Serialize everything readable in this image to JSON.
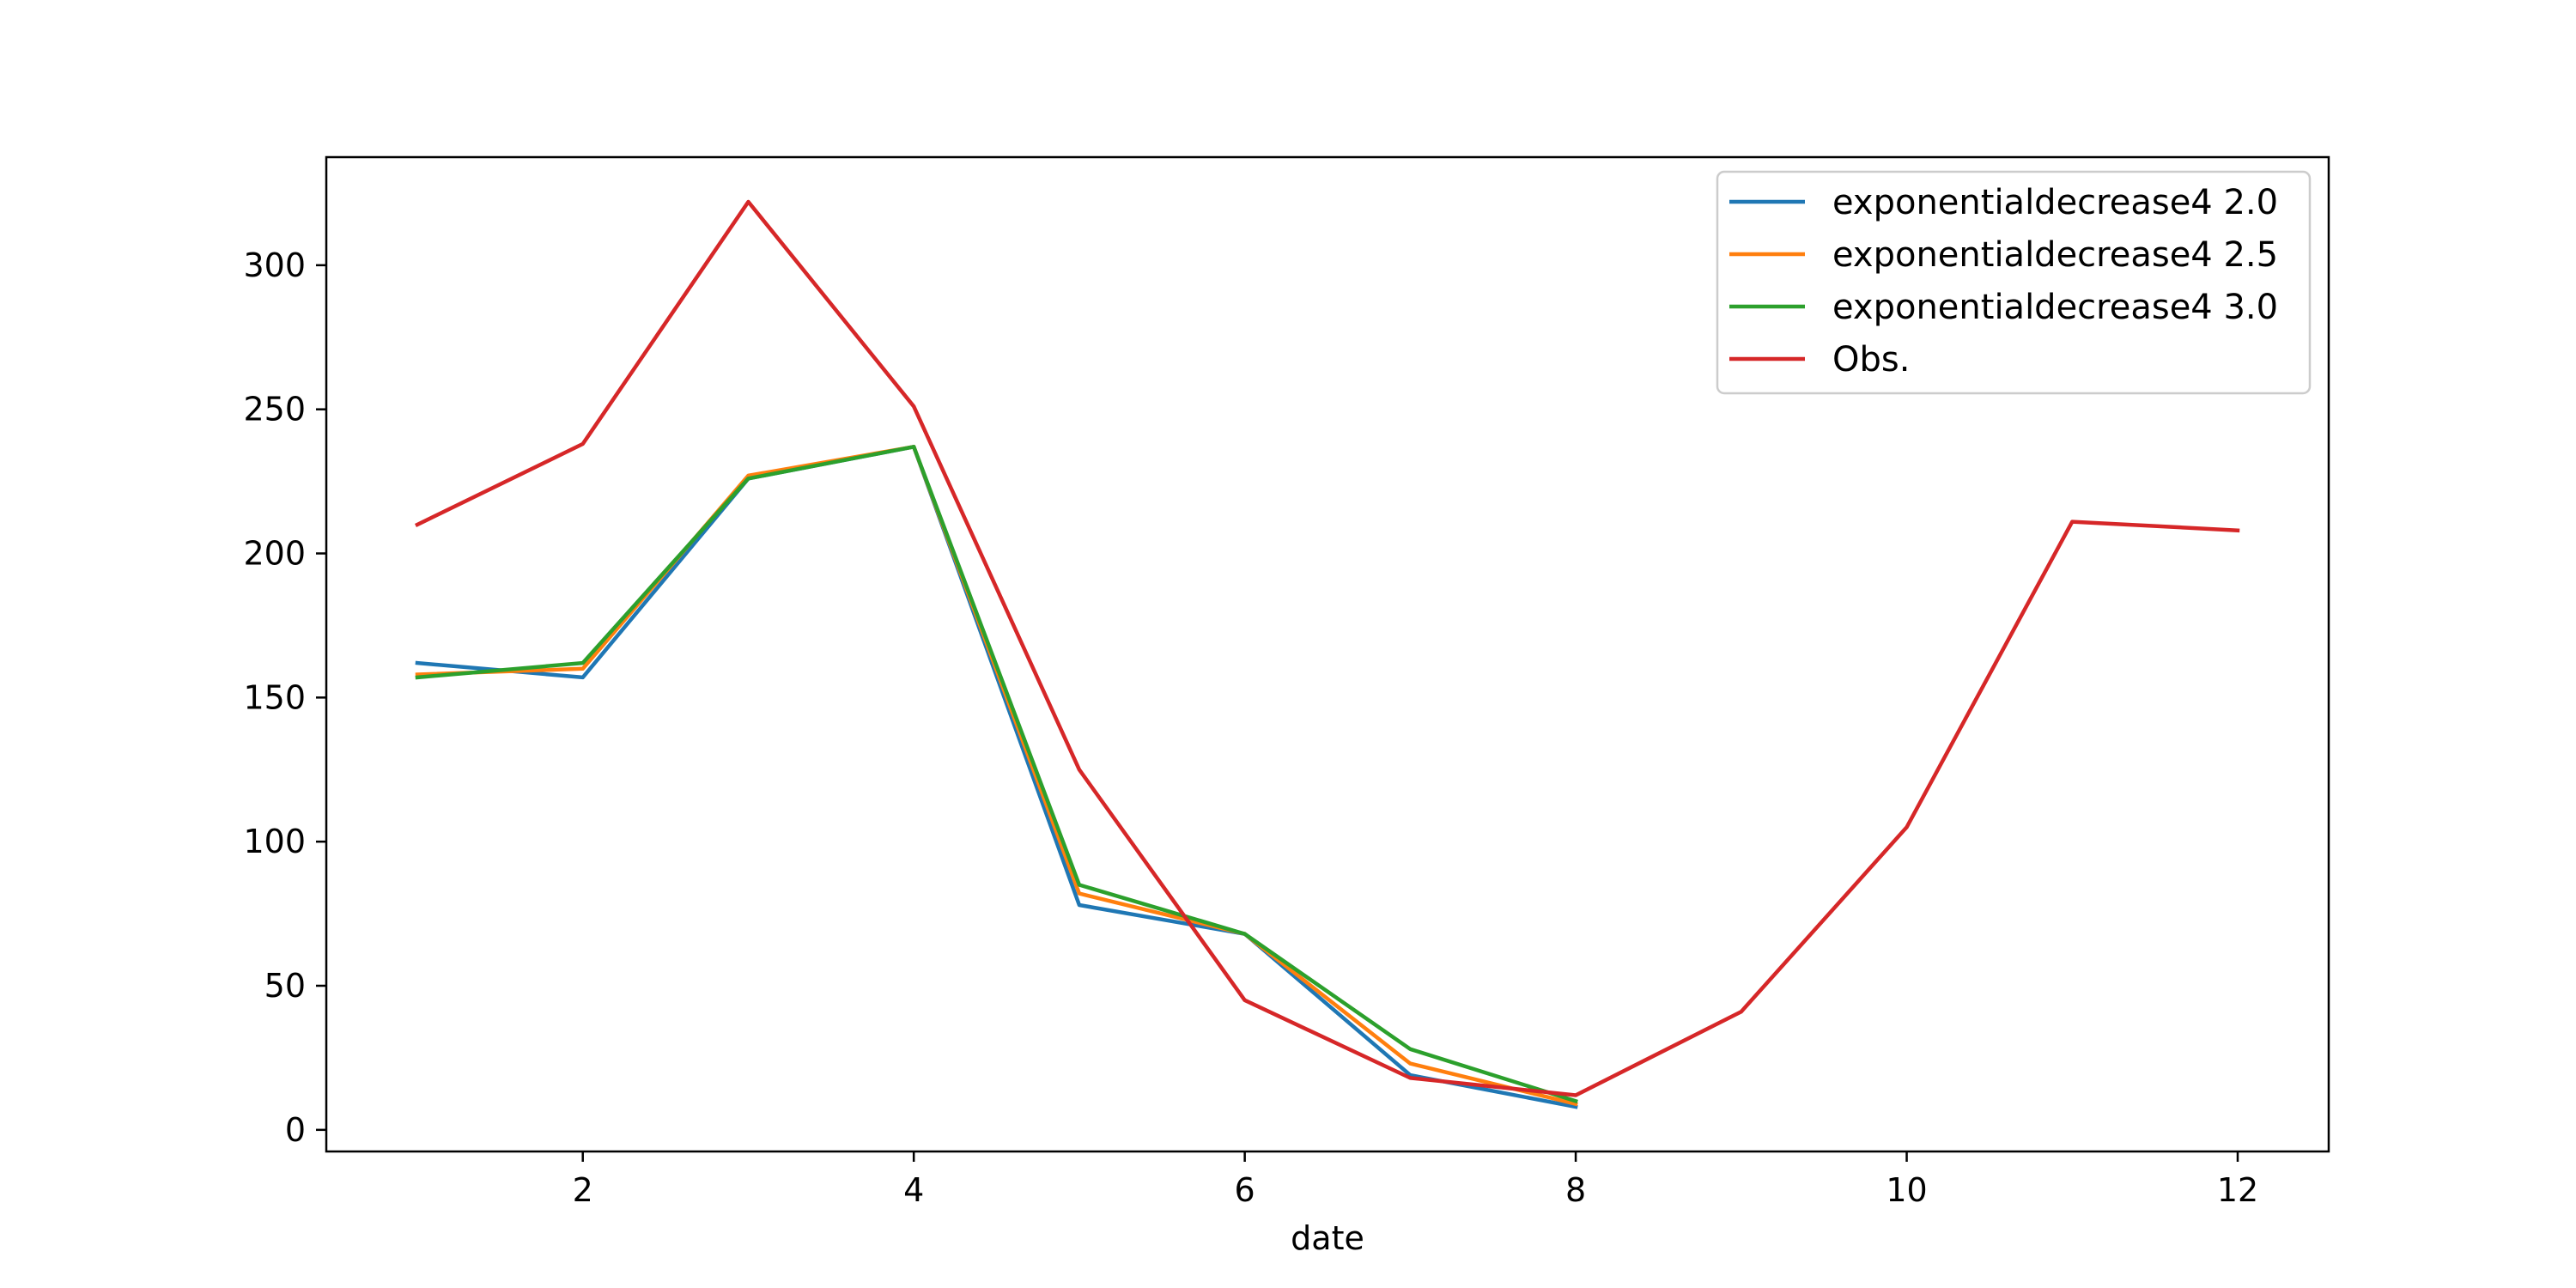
{
  "chart_data": {
    "type": "line",
    "title": "",
    "xlabel": "date",
    "ylabel": "",
    "xlim": [
      0.45,
      12.55
    ],
    "ylim": [
      -7.5,
      337.5
    ],
    "x_ticks": [
      2,
      4,
      6,
      8,
      10,
      12
    ],
    "x_tick_labels": [
      "2",
      "4",
      "6",
      "8",
      "10",
      "12"
    ],
    "y_ticks": [
      0,
      50,
      100,
      150,
      200,
      250,
      300
    ],
    "y_tick_labels": [
      "0",
      "50",
      "100",
      "150",
      "200",
      "250",
      "300"
    ],
    "grid": false,
    "legend_position": "top-right",
    "series": [
      {
        "name": "exponentialdecrease4 2.0",
        "color": "#1f77b4",
        "x": [
          1,
          2,
          3,
          4,
          5,
          6,
          7,
          8
        ],
        "y": [
          162,
          157,
          226,
          237,
          78,
          68,
          19,
          8
        ]
      },
      {
        "name": "exponentialdecrease4 2.5",
        "color": "#ff7f0e",
        "x": [
          1,
          2,
          3,
          4,
          5,
          6,
          7,
          8
        ],
        "y": [
          158,
          160,
          227,
          237,
          82,
          68,
          23,
          9
        ]
      },
      {
        "name": "exponentialdecrease4 3.0",
        "color": "#2ca02c",
        "x": [
          1,
          2,
          3,
          4,
          5,
          6,
          7,
          8
        ],
        "y": [
          157,
          162,
          226,
          237,
          85,
          68,
          28,
          10
        ]
      },
      {
        "name": "Obs.",
        "color": "#d62728",
        "x": [
          1,
          2,
          3,
          4,
          5,
          6,
          7,
          8,
          9,
          10,
          11,
          12
        ],
        "y": [
          210,
          238,
          322,
          251,
          125,
          45,
          18,
          12,
          41,
          105,
          211,
          208
        ]
      }
    ]
  }
}
